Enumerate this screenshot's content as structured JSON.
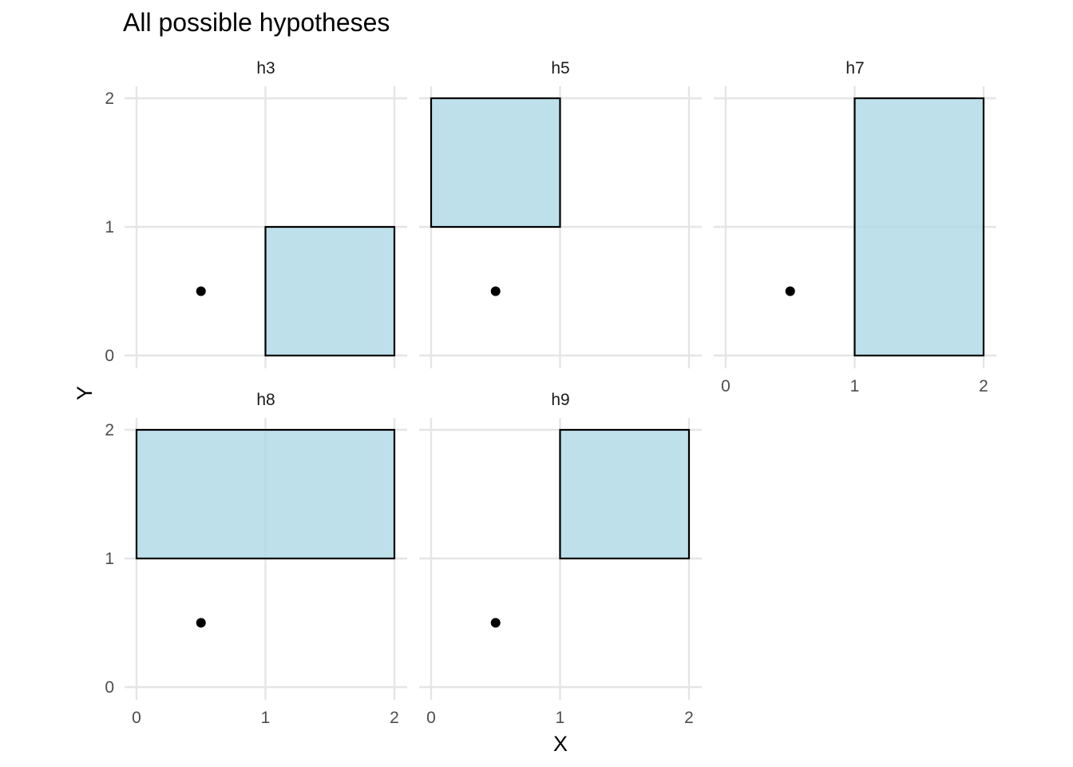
{
  "chart_data": {
    "type": "faceted-rect-scatter",
    "title": "All possible hypotheses",
    "xlabel": "X",
    "ylabel": "Y",
    "xlim": [
      0,
      2
    ],
    "ylim": [
      0,
      2
    ],
    "x_ticks": [
      "0",
      "1",
      "2"
    ],
    "y_ticks": [
      "0",
      "1",
      "2"
    ],
    "grid": true,
    "rect_fill": "#add8e6",
    "rect_outline": "#000000",
    "point_color": "#000000",
    "point": {
      "x": 0.5,
      "y": 0.5
    },
    "facets": [
      {
        "label": "h3",
        "rect": {
          "xmin": 1,
          "xmax": 2,
          "ymin": 0,
          "ymax": 1
        }
      },
      {
        "label": "h5",
        "rect": {
          "xmin": 0,
          "xmax": 1,
          "ymin": 1,
          "ymax": 2
        }
      },
      {
        "label": "h7",
        "rect": {
          "xmin": 1,
          "xmax": 2,
          "ymin": 0,
          "ymax": 2
        }
      },
      {
        "label": "h8",
        "rect": {
          "xmin": 0,
          "xmax": 2,
          "ymin": 1,
          "ymax": 2
        }
      },
      {
        "label": "h9",
        "rect": {
          "xmin": 1,
          "xmax": 2,
          "ymin": 1,
          "ymax": 2
        }
      }
    ]
  }
}
